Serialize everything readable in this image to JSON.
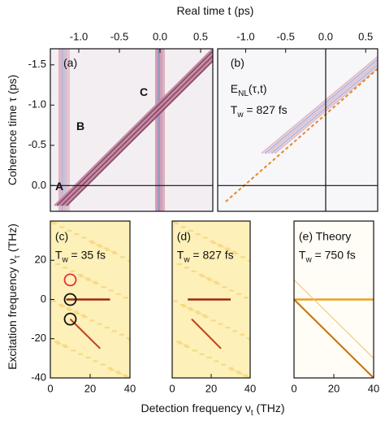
{
  "labels": {
    "top_x": {
      "parts": [
        "Real time t (ps)"
      ]
    },
    "left_top": {
      "parts": [
        "Coherence time τ (ps)"
      ]
    },
    "left_bottom": {
      "parts": [
        "Excitation frequency ν",
        {
          "sub": "τ"
        },
        " (THz)"
      ]
    },
    "bottom_x": {
      "parts": [
        "Detection frequency ν",
        {
          "sub": "t"
        },
        " (THz)"
      ]
    }
  },
  "chart_data": [
    {
      "type": "heatmap",
      "xlim": [
        -1.35,
        0.65
      ],
      "ylim": [
        0.32,
        -1.7
      ],
      "xticks": [
        {
          "value": -1,
          "label": "-1.0"
        },
        -0.5,
        {
          "value": 0,
          "label": "0.0"
        },
        0.5
      ],
      "yticks": [
        -1.5,
        {
          "value": -1,
          "label": "-1.0"
        },
        -0.5,
        {
          "value": 0,
          "label": "0.0"
        }
      ],
      "annotations": [
        {
          "parts": [
            "(a)"
          ]
        },
        {
          "parts": [
            "A"
          ],
          "color": "#e8303a"
        },
        {
          "parts": [
            "B"
          ],
          "color": "#1fa060"
        },
        {
          "parts": [
            "C"
          ],
          "color": "#2b2f8c"
        }
      ]
    },
    {
      "type": "heatmap",
      "xlim": [
        -1.35,
        0.65
      ],
      "ylim": [
        0.32,
        -1.7
      ],
      "xticks": [
        {
          "value": -1,
          "label": "-1.0"
        },
        -0.5,
        {
          "value": 0,
          "label": "0.0"
        },
        0.5
      ],
      "annotations": [
        {
          "parts": [
            "(b)"
          ]
        },
        {
          "parts": [
            "E",
            {
              "sub": "NL"
            },
            "(τ,t)"
          ]
        },
        {
          "parts": [
            "T",
            {
              "sub": "w"
            },
            " = 827 fs"
          ]
        }
      ]
    },
    {
      "type": "heatmap",
      "xlim": [
        0,
        40
      ],
      "ylim": [
        -40,
        40
      ],
      "xticks": [
        0,
        20,
        40
      ],
      "yticks": [
        -40,
        -20,
        0,
        20
      ],
      "annotations": [
        {
          "parts": [
            "(c)"
          ]
        },
        {
          "parts": [
            "T",
            {
              "sub": "w"
            },
            " = 35 fs"
          ]
        }
      ],
      "circles": [
        {
          "x": 10,
          "y": 10,
          "color": "#e8303a"
        },
        {
          "x": 10,
          "y": 0,
          "color": "#111111"
        },
        {
          "x": 10,
          "y": -10,
          "color": "#111111"
        }
      ]
    },
    {
      "type": "heatmap",
      "xlim": [
        0,
        40
      ],
      "ylim": [
        -40,
        40
      ],
      "xticks": [
        0,
        20,
        40
      ],
      "annotations": [
        {
          "parts": [
            "(d)"
          ]
        },
        {
          "parts": [
            "T",
            {
              "sub": "w"
            },
            " = 827 fs"
          ]
        }
      ]
    },
    {
      "type": "heatmap",
      "xlim": [
        0,
        40
      ],
      "ylim": [
        -40,
        40
      ],
      "xticks": [
        0,
        20,
        40
      ],
      "annotations": [
        {
          "parts": [
            "(e)  Theory"
          ]
        },
        {
          "parts": [
            "T",
            {
              "sub": "w"
            },
            " = 750 fs"
          ]
        }
      ]
    }
  ]
}
